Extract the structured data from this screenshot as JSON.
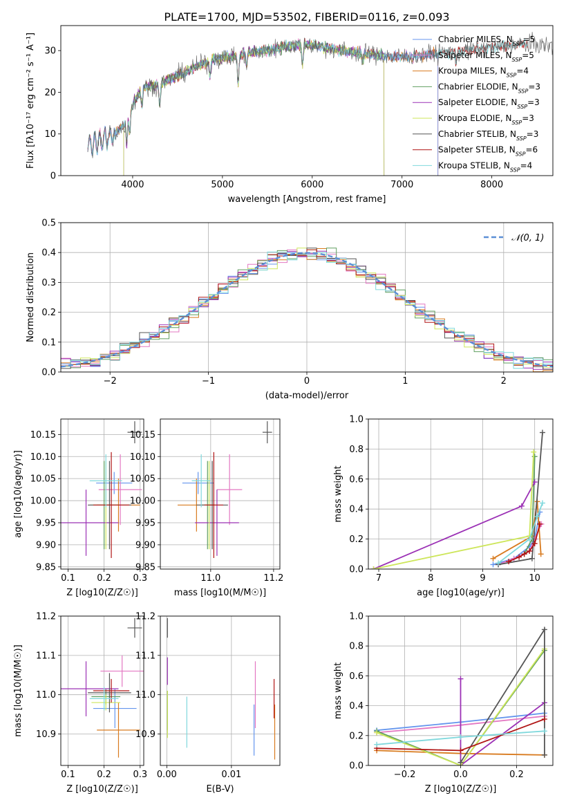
{
  "figure": {
    "title": "PLATE=1700, MJD=53502, FIBERID=0116, z=0.093"
  },
  "colors": {
    "Chabrier MILES": "#6495ed",
    "Salpeter MILES": "#e377c2",
    "Kroupa MILES": "#d87a1e",
    "Chabrier ELODIE": "#5f9e5f",
    "Salpeter ELODIE": "#9b30b5",
    "Kroupa ELODIE": "#cde65a",
    "Chabrier STELIB": "#555555",
    "Salpeter STELIB": "#b01515",
    "Kroupa STELIB": "#7fd8dc",
    "normal": "#5b8fd6"
  },
  "chart_data": [
    {
      "id": "spectrum",
      "type": "line",
      "xlabel": "wavelength [Angstrom, rest frame]",
      "ylabel": "Flux [fλ10⁻¹⁷ erg cm⁻² s⁻¹ A⁻¹]",
      "xlim": [
        3200,
        8680
      ],
      "ylim": [
        0,
        36
      ],
      "xticks": [
        4000,
        5000,
        6000,
        7000,
        8000
      ],
      "yticks": [
        0,
        10,
        20,
        30
      ],
      "legend_position": "top-right",
      "legend": [
        "Chabrier MILES, N_SSP=5",
        "Salpeter MILES, N_SSP=5",
        "Kroupa MILES, N_SSP=4",
        "Chabrier ELODIE, N_SSP=3",
        "Salpeter ELODIE, N_SSP=3",
        "Kroupa ELODIE, N_SSP=3",
        "Chabrier STELIB, N_SSP=3",
        "Salpeter STELIB, N_SSP=6",
        "Kroupa STELIB, N_SSP=4"
      ],
      "continuum": {
        "x": [
          3500,
          3600,
          3700,
          3800,
          3900,
          4000,
          4100,
          4300,
          4500,
          4700,
          4900,
          5100,
          5300,
          5500,
          5700,
          5900,
          6100,
          6300,
          6500,
          6700,
          6900,
          7100,
          7300,
          7500,
          7700,
          7900,
          8100,
          8300,
          8500,
          8680
        ],
        "y": [
          7,
          8,
          9,
          10,
          12,
          17,
          21,
          22,
          24,
          26,
          28,
          28.5,
          29.5,
          30,
          31,
          31.5,
          31,
          30,
          29.5,
          29,
          28.5,
          28.5,
          29,
          29.5,
          30,
          30.5,
          31,
          31.5,
          31.5,
          31
        ]
      },
      "absorption_features": [
        {
          "x": 3934,
          "depth": 6
        },
        {
          "x": 3968,
          "depth": 5
        },
        {
          "x": 4102,
          "depth": 4
        },
        {
          "x": 4300,
          "depth": 5
        },
        {
          "x": 4861,
          "depth": 4
        },
        {
          "x": 5175,
          "depth": 7
        },
        {
          "x": 5270,
          "depth": 3
        },
        {
          "x": 5893,
          "depth": 5
        },
        {
          "x": 6563,
          "depth": 2
        },
        {
          "x": 7600,
          "depth": 3
        }
      ],
      "model_x_ranges": {
        "Chabrier MILES": [
          3500,
          7400
        ],
        "Salpeter MILES": [
          3500,
          7400
        ],
        "Kroupa MILES": [
          3500,
          7400
        ],
        "Chabrier ELODIE": [
          3900,
          6800
        ],
        "Salpeter ELODIE": [
          3900,
          6800
        ],
        "Kroupa ELODIE": [
          3900,
          6800
        ],
        "Chabrier STELIB": [
          3500,
          8680
        ],
        "Salpeter STELIB": [
          3500,
          8400
        ],
        "Kroupa STELIB": [
          3500,
          8400
        ]
      }
    },
    {
      "id": "residuals",
      "type": "histogram",
      "xlabel": "(data-model)/error",
      "ylabel": "Normed distribution",
      "xlim": [
        -2.5,
        2.5
      ],
      "ylim": [
        0,
        0.5
      ],
      "xticks": [
        -2,
        -1,
        0,
        1,
        2
      ],
      "yticks": [
        0.0,
        0.1,
        0.2,
        0.3,
        0.4,
        0.5
      ],
      "grid": true,
      "legend_position": "top-right",
      "reference_curve": "N(0,1)",
      "bin_width": 0.1
    },
    {
      "id": "age_vs_Z",
      "type": "scatter-errorbar",
      "xlabel": "Z [log10(Z/Z☉)]",
      "ylabel": "age [log10(age/yr)]",
      "xlim": [
        0.08,
        0.31
      ],
      "ylim": [
        9.845,
        10.185
      ],
      "xticks": [
        0.1,
        0.2,
        0.3
      ],
      "yticks": [
        9.85,
        9.9,
        9.95,
        10.0,
        10.05,
        10.1,
        10.15
      ],
      "grid": true,
      "points": [
        {
          "model": "Chabrier MILES",
          "x": 0.228,
          "y": 10.04,
          "xerr": 0.05,
          "yerr": 0.025
        },
        {
          "model": "Salpeter MILES",
          "x": 0.245,
          "y": 10.025,
          "xerr": 0.06,
          "yerr": 0.08
        },
        {
          "model": "Kroupa MILES",
          "x": 0.24,
          "y": 9.99,
          "xerr": 0.06,
          "yerr": 0.06
        },
        {
          "model": "Chabrier ELODIE",
          "x": 0.2,
          "y": 9.99,
          "xerr": 0.04,
          "yerr": 0.1
        },
        {
          "model": "Salpeter ELODIE",
          "x": 0.15,
          "y": 9.95,
          "xerr": 0.09,
          "yerr": 0.075
        },
        {
          "model": "Kroupa ELODIE",
          "x": 0.205,
          "y": 9.99,
          "xerr": 0.04,
          "yerr": 0.1
        },
        {
          "model": "Chabrier STELIB",
          "x": 0.215,
          "y": 9.99,
          "xerr": 0.06,
          "yerr": 0.1
        },
        {
          "model": "Salpeter STELIB",
          "x": 0.22,
          "y": 9.99,
          "xerr": 0.05,
          "yerr": 0.12
        },
        {
          "model": "Kroupa STELIB",
          "x": 0.205,
          "y": 10.045,
          "xerr": 0.045,
          "yerr": 0.06
        }
      ],
      "ref_cross": {
        "x": 0.285,
        "y": 10.155,
        "xerr": 0.02,
        "yerr": 0.025
      }
    },
    {
      "id": "age_vs_mass",
      "type": "scatter-errorbar",
      "xlabel": "mass [log10(M/M☉)]",
      "ylabel": "",
      "xlim": [
        10.84,
        11.22
      ],
      "ylim": [
        9.845,
        10.185
      ],
      "xticks": [
        11.0,
        11.2
      ],
      "yticks": [
        9.85,
        9.9,
        9.95,
        10.0,
        10.05,
        10.1,
        10.15
      ],
      "grid": true,
      "points": [
        {
          "model": "Chabrier MILES",
          "x": 10.96,
          "y": 10.04,
          "xerr": 0.05,
          "yerr": 0.025
        },
        {
          "model": "Salpeter MILES",
          "x": 11.06,
          "y": 10.025,
          "xerr": 0.04,
          "yerr": 0.08
        },
        {
          "model": "Kroupa MILES",
          "x": 10.955,
          "y": 9.99,
          "xerr": 0.06,
          "yerr": 0.06
        },
        {
          "model": "Chabrier ELODIE",
          "x": 10.99,
          "y": 9.99,
          "xerr": 0.02,
          "yerr": 0.1
        },
        {
          "model": "Salpeter ELODIE",
          "x": 11.02,
          "y": 9.95,
          "xerr": 0.07,
          "yerr": 0.075
        },
        {
          "model": "Kroupa ELODIE",
          "x": 10.995,
          "y": 9.99,
          "xerr": 0.02,
          "yerr": 0.1
        },
        {
          "model": "Chabrier STELIB",
          "x": 11.005,
          "y": 9.99,
          "xerr": 0.05,
          "yerr": 0.1
        },
        {
          "model": "Salpeter STELIB",
          "x": 11.01,
          "y": 9.99,
          "xerr": 0.03,
          "yerr": 0.12
        },
        {
          "model": "Kroupa STELIB",
          "x": 10.97,
          "y": 10.045,
          "xerr": 0.03,
          "yerr": 0.06
        }
      ],
      "ref_cross": {
        "x": 11.18,
        "y": 10.155,
        "xerr": 0.015,
        "yerr": 0.025
      }
    },
    {
      "id": "weight_vs_age",
      "type": "line",
      "xlabel": "age [log10(age/yr)]",
      "ylabel": "mass weight",
      "xlim": [
        6.8,
        10.35
      ],
      "ylim": [
        0,
        1.0
      ],
      "xticks": [
        7,
        8,
        9,
        10
      ],
      "yticks": [
        0.0,
        0.2,
        0.4,
        0.6,
        0.8,
        1.0
      ],
      "grid": true,
      "series": [
        {
          "model": "Chabrier MILES",
          "x": [
            9.2,
            9.6,
            9.9,
            10.0,
            10.1
          ],
          "y": [
            0.03,
            0.07,
            0.15,
            0.2,
            0.38
          ]
        },
        {
          "model": "Salpeter MILES",
          "x": [
            9.3,
            9.6,
            9.9,
            10.0,
            10.13
          ],
          "y": [
            0.03,
            0.07,
            0.12,
            0.2,
            0.3
          ]
        },
        {
          "model": "Kroupa MILES",
          "x": [
            9.2,
            9.95,
            10.05,
            10.12
          ],
          "y": [
            0.07,
            0.22,
            0.45,
            0.1
          ]
        },
        {
          "model": "Chabrier ELODIE",
          "x": [
            9.8,
            9.95,
            10.0
          ],
          "y": [
            0.1,
            0.2,
            0.75
          ]
        },
        {
          "model": "Salpeter ELODIE",
          "x": [
            6.9,
            9.75,
            10.0
          ],
          "y": [
            0.0,
            0.42,
            0.58
          ]
        },
        {
          "model": "Kroupa ELODIE",
          "x": [
            6.9,
            9.9,
            9.98
          ],
          "y": [
            0.0,
            0.22,
            0.78
          ]
        },
        {
          "model": "Chabrier STELIB",
          "x": [
            9.3,
            9.95,
            10.15
          ],
          "y": [
            0.03,
            0.07,
            0.91
          ]
        },
        {
          "model": "Salpeter STELIB",
          "x": [
            9.5,
            9.7,
            9.8,
            9.9,
            10.0,
            10.1
          ],
          "y": [
            0.05,
            0.08,
            0.1,
            0.12,
            0.17,
            0.3
          ]
        },
        {
          "model": "Kroupa STELIB",
          "x": [
            9.3,
            9.9,
            10.05,
            10.15
          ],
          "y": [
            0.04,
            0.2,
            0.35,
            0.44
          ]
        }
      ]
    },
    {
      "id": "mass_vs_Z",
      "type": "scatter-errorbar",
      "xlabel": "Z [log10(Z/Z☉)]",
      "ylabel": "mass [log10(M/M☉)]",
      "xlim": [
        0.08,
        0.31
      ],
      "ylim": [
        10.82,
        11.2
      ],
      "xticks": [
        0.1,
        0.2,
        0.3
      ],
      "yticks": [
        10.9,
        11.0,
        11.1,
        11.2
      ],
      "grid": true,
      "points": [
        {
          "model": "Chabrier MILES",
          "x": 0.23,
          "y": 10.965,
          "xerr": 0.06,
          "yerr": 0.05
        },
        {
          "model": "Salpeter MILES",
          "x": 0.25,
          "y": 11.06,
          "xerr": 0.06,
          "yerr": 0.04
        },
        {
          "model": "Kroupa MILES",
          "x": 0.24,
          "y": 10.91,
          "xerr": 0.06,
          "yerr": 0.07
        },
        {
          "model": "Chabrier ELODIE",
          "x": 0.205,
          "y": 10.995,
          "xerr": 0.04,
          "yerr": 0.02
        },
        {
          "model": "Salpeter ELODIE",
          "x": 0.15,
          "y": 11.015,
          "xerr": 0.09,
          "yerr": 0.07
        },
        {
          "model": "Kroupa ELODIE",
          "x": 0.205,
          "y": 10.98,
          "xerr": 0.04,
          "yerr": 0.02
        },
        {
          "model": "Chabrier STELIB",
          "x": 0.215,
          "y": 11.005,
          "xerr": 0.06,
          "yerr": 0.05
        },
        {
          "model": "Salpeter STELIB",
          "x": 0.22,
          "y": 11.01,
          "xerr": 0.05,
          "yerr": 0.03
        },
        {
          "model": "Kroupa STELIB",
          "x": 0.2,
          "y": 10.99,
          "xerr": 0.04,
          "yerr": 0.03
        }
      ],
      "ref_cross": {
        "x": 0.285,
        "y": 11.17,
        "xerr": 0.02,
        "yerr": 0.025
      }
    },
    {
      "id": "mass_vs_ebv",
      "type": "scatter-errorbar",
      "xlabel": "E(B-V)",
      "ylabel": "",
      "xlim": [
        -0.001,
        0.0175
      ],
      "ylim": [
        10.82,
        11.2
      ],
      "xticks": [
        0.0,
        0.01
      ],
      "yticks": [
        10.9,
        11.0,
        11.1,
        11.2
      ],
      "grid": true,
      "points": [
        {
          "model": "Chabrier MILES",
          "x": 0.0135,
          "y": 10.91,
          "yerr": 0.065
        },
        {
          "model": "Salpeter MILES",
          "x": 0.0137,
          "y": 11.0,
          "yerr": 0.085
        },
        {
          "model": "Kroupa MILES",
          "x": 0.0167,
          "y": 10.905,
          "yerr": 0.07
        },
        {
          "model": "Chabrier ELODIE",
          "x": 0.0001,
          "y": 10.96,
          "yerr": 0.05
        },
        {
          "model": "Salpeter ELODIE",
          "x": 0.0001,
          "y": 11.06,
          "yerr": 0.035
        },
        {
          "model": "Kroupa ELODIE",
          "x": 0.0001,
          "y": 10.95,
          "yerr": 0.06
        },
        {
          "model": "Chabrier STELIB",
          "x": 0.0001,
          "y": 11.17,
          "yerr": 0.025
        },
        {
          "model": "Salpeter STELIB",
          "x": 0.0166,
          "y": 10.99,
          "yerr": 0.05
        },
        {
          "model": "Kroupa STELIB",
          "x": 0.0031,
          "y": 10.93,
          "yerr": 0.065
        }
      ]
    },
    {
      "id": "weight_vs_Z",
      "type": "line",
      "xlabel": "Z [log10(Z/Z☉)]",
      "ylabel": "mass weight",
      "xlim": [
        -0.33,
        0.33
      ],
      "ylim": [
        0,
        1.0
      ],
      "xticks": [
        -0.2,
        0.0,
        0.2
      ],
      "yticks": [
        0.0,
        0.2,
        0.4,
        0.6,
        0.8,
        1.0
      ],
      "grid": true,
      "series": [
        {
          "model": "Chabrier MILES",
          "x": [
            -0.3,
            0.0,
            0.3
          ],
          "y": [
            0.235,
            0.29,
            0.35
          ]
        },
        {
          "model": "Salpeter MILES",
          "x": [
            -0.3,
            0.0,
            0.3
          ],
          "y": [
            0.22,
            0.27,
            0.33
          ]
        },
        {
          "model": "Kroupa MILES",
          "x": [
            -0.3,
            0.0,
            0.3
          ],
          "y": [
            0.1,
            0.08,
            0.07
          ]
        },
        {
          "model": "Chabrier ELODIE",
          "x": [
            -0.3,
            0.0,
            0.3
          ],
          "y": [
            0.23,
            0.0,
            0.77
          ]
        },
        {
          "model": "Salpeter ELODIE",
          "x": [
            0.0,
            0.0,
            0.3
          ],
          "y": [
            0.58,
            0.0,
            0.42
          ]
        },
        {
          "model": "Kroupa ELODIE",
          "x": [
            -0.3,
            0.0,
            0.3
          ],
          "y": [
            0.22,
            0.0,
            0.78
          ]
        },
        {
          "model": "Chabrier STELIB",
          "x": [
            0.0,
            0.3,
            0.3
          ],
          "y": [
            0.02,
            0.91,
            0.07
          ]
        },
        {
          "model": "Salpeter STELIB",
          "x": [
            -0.3,
            0.0,
            0.3
          ],
          "y": [
            0.115,
            0.1,
            0.31
          ]
        },
        {
          "model": "Kroupa STELIB",
          "x": [
            -0.3,
            0.0,
            0.3
          ],
          "y": [
            0.14,
            0.19,
            0.23
          ]
        }
      ]
    }
  ]
}
